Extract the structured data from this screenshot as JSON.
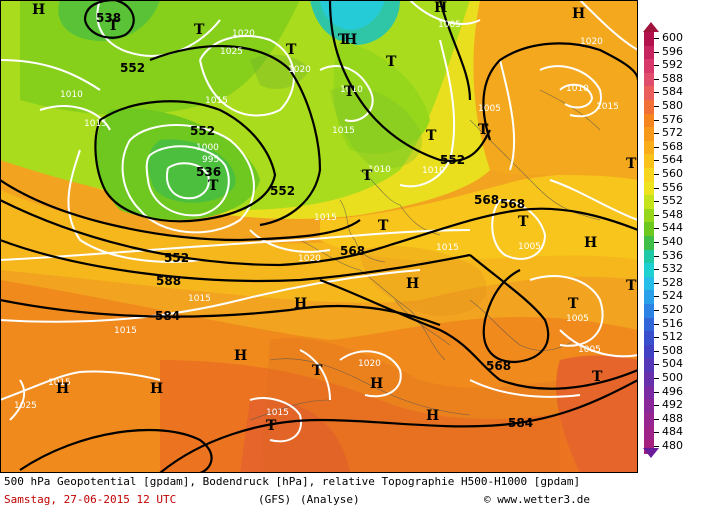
{
  "footer": {
    "description": "500 hPa Geopotential [gpdam], Bodendruck [hPa], relative Topographie H500-H1000 [gpdam]",
    "date_time": "Samstag, 27-06-2015  12 UTC",
    "model": "(GFS)",
    "run": "(Analyse)",
    "credit": "© www.wetter3.de"
  },
  "legend": {
    "values": [
      "600",
      "596",
      "592",
      "588",
      "584",
      "580",
      "576",
      "572",
      "568",
      "564",
      "560",
      "556",
      "552",
      "548",
      "544",
      "540",
      "536",
      "532",
      "528",
      "524",
      "520",
      "516",
      "512",
      "508",
      "504",
      "500",
      "496",
      "492",
      "488",
      "484",
      "480"
    ],
    "colors": [
      "#b3124d",
      "#c7255f",
      "#d8386a",
      "#e14d6c",
      "#ea5e5c",
      "#f07038",
      "#f4851f",
      "#f79a1c",
      "#f9ad1b",
      "#f9c21b",
      "#f8d51f",
      "#eee31f",
      "#c5e41e",
      "#96d71b",
      "#6dc820",
      "#3fbf4a",
      "#20c9a6",
      "#1fd0d0",
      "#27bde9",
      "#2aa0ea",
      "#2d83e4",
      "#3266d8",
      "#3a4fcd",
      "#4341c3",
      "#5538b7",
      "#6731ab",
      "#7a2ba3",
      "#8a2899",
      "#972691",
      "#9f2487",
      "#a4227d"
    ]
  },
  "map_labels": {
    "geopotential": [
      "538",
      "552",
      "552",
      "552",
      "536",
      "552",
      "552",
      "568",
      "568",
      "588",
      "584",
      "568",
      "584",
      "568"
    ],
    "pressure": [
      "1020",
      "1025",
      "1010",
      "1015",
      "1015",
      "1020",
      "1010",
      "1015",
      "1005",
      "1000",
      "995",
      "1010",
      "1015",
      "1010",
      "1005",
      "1015",
      "1010",
      "1020",
      "1015",
      "1005",
      "1020",
      "1015",
      "1025",
      "1015",
      "1005",
      "1015",
      "1020",
      "1005",
      "1015"
    ],
    "highs": [
      "H",
      "H",
      "H",
      "H",
      "H",
      "H",
      "H",
      "H",
      "H",
      "H",
      "H",
      "H"
    ],
    "lows": [
      "T",
      "T",
      "T",
      "T",
      "T",
      "T",
      "T",
      "T",
      "T",
      "T",
      "T",
      "T",
      "T",
      "T",
      "T",
      "T",
      "T",
      "T"
    ]
  }
}
